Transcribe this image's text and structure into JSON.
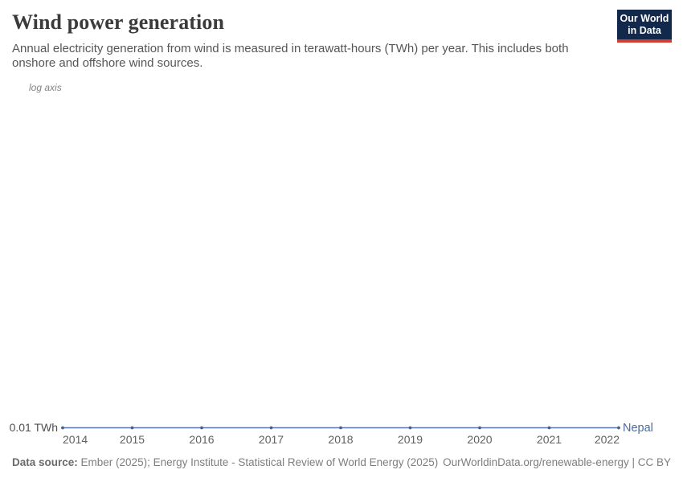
{
  "header": {
    "title": "Wind power generation",
    "subtitle_lines": [
      "Annual electricity generation from wind is measured in terawatt-hours (TWh) per year. This includes both",
      "onshore and offshore wind sources."
    ],
    "logo": {
      "line1": "Our World",
      "line2": "in Data"
    }
  },
  "chart_data": {
    "type": "line",
    "title": "Wind power generation",
    "entity": "Nepal",
    "unit": "TWh",
    "x": [
      2014,
      2015,
      2016,
      2017,
      2018,
      2019,
      2020,
      2021,
      2022
    ],
    "series": [
      {
        "name": "Nepal",
        "values": [
          0.01,
          0.01,
          0.01,
          0.01,
          0.01,
          0.01,
          0.01,
          0.01,
          0.01
        ]
      }
    ],
    "y_axis": {
      "scale": "log",
      "note": "log axis",
      "visible_tick": "0.01 TWh"
    },
    "grid": false,
    "legend_position": "end-of-line",
    "colors": {
      "line": "#5a78aa",
      "marker": "#44618f",
      "entity_label": "#4c6a9c"
    }
  },
  "footer": {
    "datasource_label": "Data source:",
    "datasource_text": " Ember (2025); Energy Institute - Statistical Review of World Energy (2025)",
    "url_text": "OurWorldinData.org/renewable-energy",
    "divider": " | ",
    "license": "CC BY"
  }
}
